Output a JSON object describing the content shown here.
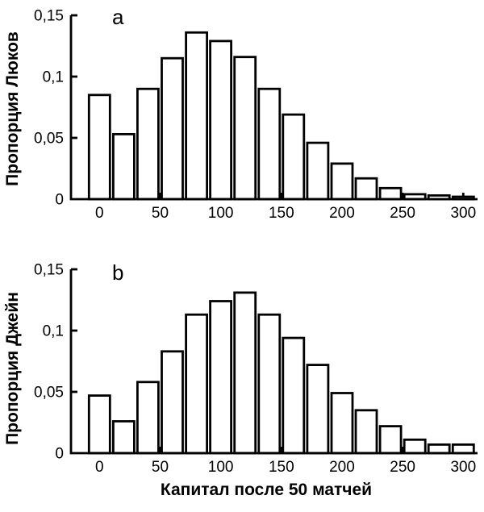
{
  "figure": {
    "background": "#ffffff",
    "ink": "#000000",
    "xlabel": "Капитал после 50 матчей"
  },
  "chart_data": [
    {
      "type": "bar",
      "panel": "a",
      "ylabel": "Пропорция Люков",
      "xlabel": "Капитал после 50 матчей",
      "bin_width": 20,
      "bin_centers": [
        0,
        20,
        40,
        60,
        80,
        100,
        120,
        140,
        160,
        180,
        200,
        220,
        240,
        260,
        280,
        300
      ],
      "values": [
        0.085,
        0.053,
        0.09,
        0.115,
        0.136,
        0.129,
        0.116,
        0.09,
        0.069,
        0.046,
        0.029,
        0.017,
        0.009,
        0.004,
        0.003,
        0.002
      ],
      "xlim": [
        -23,
        312
      ],
      "ylim": [
        0,
        0.15
      ],
      "x_tick_values": [
        0,
        50,
        100,
        150,
        200,
        250,
        300
      ],
      "x_tick_labels": [
        "0",
        "50",
        "100",
        "150",
        "200",
        "250",
        "300"
      ],
      "y_tick_values": [
        0,
        0.05,
        0.1,
        0.15
      ],
      "y_tick_labels": [
        "0",
        "0,05",
        "0,1",
        "0,15"
      ],
      "bar_fill": "#ffffff",
      "bar_stroke": "#000000",
      "grid": false,
      "legend": "none"
    },
    {
      "type": "bar",
      "panel": "b",
      "ylabel": "Пропорция Джейн",
      "xlabel": "Капитал после 50 матчей",
      "bin_width": 20,
      "bin_centers": [
        0,
        20,
        40,
        60,
        80,
        100,
        120,
        140,
        160,
        180,
        200,
        220,
        240,
        260,
        280,
        300
      ],
      "values": [
        0.047,
        0.026,
        0.058,
        0.083,
        0.113,
        0.124,
        0.131,
        0.113,
        0.094,
        0.072,
        0.049,
        0.035,
        0.022,
        0.011,
        0.007,
        0.007
      ],
      "xlim": [
        -23,
        312
      ],
      "ylim": [
        0,
        0.15
      ],
      "x_tick_values": [
        0,
        50,
        100,
        150,
        200,
        250,
        300
      ],
      "x_tick_labels": [
        "0",
        "50",
        "100",
        "150",
        "200",
        "250",
        "300"
      ],
      "y_tick_values": [
        0,
        0.05,
        0.1,
        0.15
      ],
      "y_tick_labels": [
        "0",
        "0,05",
        "0,1",
        "0,15"
      ],
      "bar_fill": "#ffffff",
      "bar_stroke": "#000000",
      "grid": false,
      "legend": "none"
    }
  ]
}
